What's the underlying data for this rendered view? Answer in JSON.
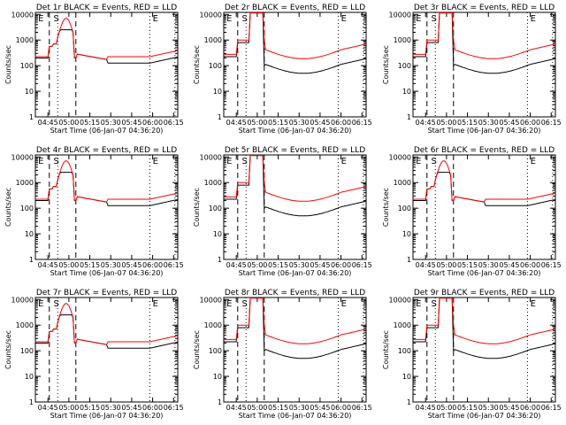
{
  "figure_ylabel": "Counts/sec",
  "figure_xlabel": "Start Time (06-Jan-07 04:36:20)",
  "colors": {
    "events": "#000000",
    "lld": "#ff0000",
    "background": "#ffffff"
  },
  "chart_data": [
    {
      "type": "line",
      "title": "Det 1r BLACK = Events, RED = LLD",
      "xlabel": "Start Time (06-Jan-07 04:36:20)",
      "ylabel": "Counts/sec",
      "y_scale": "log",
      "ylim": [
        1,
        12000
      ],
      "xlim": [
        "04:36",
        "06:18"
      ],
      "x_ticks": [
        "04:45",
        "05:00",
        "05:15",
        "05:30",
        "05:45",
        "06:00",
        "06:15"
      ],
      "y_ticks": [
        "1",
        "10",
        "100",
        "1000",
        "10000"
      ],
      "markers": [
        "E",
        "S",
        "E"
      ],
      "series": [
        {
          "name": "Events",
          "color": "#000000",
          "shape": "small"
        },
        {
          "name": "LLD",
          "color": "#ff0000",
          "shape": "small"
        }
      ]
    },
    {
      "type": "line",
      "title": "Det 2r BLACK = Events, RED = LLD",
      "xlabel": "Start Time (06-Jan-07 04:36:20)",
      "ylabel": "Counts/sec",
      "y_scale": "log",
      "ylim": [
        1,
        12000
      ],
      "xlim": [
        "04:36",
        "06:18"
      ],
      "x_ticks": [
        "04:45",
        "05:00",
        "05:15",
        "05:30",
        "05:45",
        "06:00",
        "06:15"
      ],
      "y_ticks": [
        "1",
        "10",
        "100",
        "1000",
        "10000"
      ],
      "markers": [
        "E",
        "S",
        "E"
      ],
      "series": [
        {
          "name": "Events",
          "color": "#000000",
          "shape": "big"
        },
        {
          "name": "LLD",
          "color": "#ff0000",
          "shape": "big"
        }
      ]
    },
    {
      "type": "line",
      "title": "Det 3r BLACK = Events, RED = LLD",
      "xlabel": "Start Time (06-Jan-07 04:36:20)",
      "ylabel": "Counts/sec",
      "y_scale": "log",
      "ylim": [
        1,
        12000
      ],
      "xlim": [
        "04:36",
        "06:18"
      ],
      "x_ticks": [
        "04:45",
        "05:00",
        "05:15",
        "05:30",
        "05:45",
        "06:00",
        "06:15"
      ],
      "y_ticks": [
        "1",
        "10",
        "100",
        "1000",
        "10000"
      ],
      "markers": [
        "E",
        "S",
        "E"
      ],
      "series": [
        {
          "name": "Events",
          "color": "#000000",
          "shape": "big"
        },
        {
          "name": "LLD",
          "color": "#ff0000",
          "shape": "big"
        }
      ]
    },
    {
      "type": "line",
      "title": "Det 4r BLACK = Events, RED = LLD",
      "xlabel": "Start Time (06-Jan-07 04:36:20)",
      "ylabel": "Counts/sec",
      "y_scale": "log",
      "ylim": [
        1,
        12000
      ],
      "xlim": [
        "04:36",
        "06:18"
      ],
      "x_ticks": [
        "04:45",
        "05:00",
        "05:15",
        "05:30",
        "05:45",
        "06:00",
        "06:15"
      ],
      "y_ticks": [
        "1",
        "10",
        "100",
        "1000",
        "10000"
      ],
      "markers": [
        "E",
        "S",
        "E"
      ],
      "series": [
        {
          "name": "Events",
          "color": "#000000",
          "shape": "small"
        },
        {
          "name": "LLD",
          "color": "#ff0000",
          "shape": "small"
        }
      ]
    },
    {
      "type": "line",
      "title": "Det 5r BLACK = Events, RED = LLD",
      "xlabel": "Start Time (06-Jan-07 04:36:20)",
      "ylabel": "Counts/sec",
      "y_scale": "log",
      "ylim": [
        1,
        12000
      ],
      "xlim": [
        "04:36",
        "06:18"
      ],
      "x_ticks": [
        "04:45",
        "05:00",
        "05:15",
        "05:30",
        "05:45",
        "06:00",
        "06:15"
      ],
      "y_ticks": [
        "1",
        "10",
        "100",
        "1000",
        "10000"
      ],
      "markers": [
        "E",
        "S",
        "E"
      ],
      "series": [
        {
          "name": "Events",
          "color": "#000000",
          "shape": "big"
        },
        {
          "name": "LLD",
          "color": "#ff0000",
          "shape": "big"
        }
      ]
    },
    {
      "type": "line",
      "title": "Det 6r BLACK = Events, RED = LLD",
      "xlabel": "Start Time (06-Jan-07 04:36:20)",
      "ylabel": "Counts/sec",
      "y_scale": "log",
      "ylim": [
        1,
        12000
      ],
      "xlim": [
        "04:36",
        "06:18"
      ],
      "x_ticks": [
        "04:45",
        "05:00",
        "05:15",
        "05:30",
        "05:45",
        "06:00",
        "06:15"
      ],
      "y_ticks": [
        "1",
        "10",
        "100",
        "1000",
        "10000"
      ],
      "markers": [
        "E",
        "S",
        "E"
      ],
      "series": [
        {
          "name": "Events",
          "color": "#000000",
          "shape": "small"
        },
        {
          "name": "LLD",
          "color": "#ff0000",
          "shape": "small"
        }
      ]
    },
    {
      "type": "line",
      "title": "Det 7r BLACK = Events, RED = LLD",
      "xlabel": "Start Time (06-Jan-07 04:36:20)",
      "ylabel": "Counts/sec",
      "y_scale": "log",
      "ylim": [
        1,
        12000
      ],
      "xlim": [
        "04:36",
        "06:18"
      ],
      "x_ticks": [
        "04:45",
        "05:00",
        "05:15",
        "05:30",
        "05:45",
        "06:00",
        "06:15"
      ],
      "y_ticks": [
        "1",
        "10",
        "100",
        "1000",
        "10000"
      ],
      "markers": [
        "E",
        "S",
        "E"
      ],
      "series": [
        {
          "name": "Events",
          "color": "#000000",
          "shape": "small"
        },
        {
          "name": "LLD",
          "color": "#ff0000",
          "shape": "small"
        }
      ]
    },
    {
      "type": "line",
      "title": "Det 8r BLACK = Events, RED = LLD",
      "xlabel": "Start Time (06-Jan-07 04:36:20)",
      "ylabel": "Counts/sec",
      "y_scale": "log",
      "ylim": [
        1,
        12000
      ],
      "xlim": [
        "04:36",
        "06:18"
      ],
      "x_ticks": [
        "04:45",
        "05:00",
        "05:15",
        "05:30",
        "05:45",
        "06:00",
        "06:15"
      ],
      "y_ticks": [
        "1",
        "10",
        "100",
        "1000",
        "10000"
      ],
      "markers": [
        "E",
        "S",
        "E"
      ],
      "series": [
        {
          "name": "Events",
          "color": "#000000",
          "shape": "big"
        },
        {
          "name": "LLD",
          "color": "#ff0000",
          "shape": "big"
        }
      ]
    },
    {
      "type": "line",
      "title": "Det 9r BLACK = Events, RED = LLD",
      "xlabel": "Start Time (06-Jan-07 04:36:20)",
      "ylabel": "Counts/sec",
      "y_scale": "log",
      "ylim": [
        1,
        12000
      ],
      "xlim": [
        "04:36",
        "06:18"
      ],
      "x_ticks": [
        "04:45",
        "05:00",
        "05:15",
        "05:30",
        "05:45",
        "06:00",
        "06:15"
      ],
      "y_ticks": [
        "1",
        "10",
        "100",
        "1000",
        "10000"
      ],
      "markers": [
        "E",
        "S",
        "E"
      ],
      "series": [
        {
          "name": "Events",
          "color": "#000000",
          "shape": "big"
        },
        {
          "name": "LLD",
          "color": "#ff0000",
          "shape": "big"
        }
      ]
    }
  ]
}
